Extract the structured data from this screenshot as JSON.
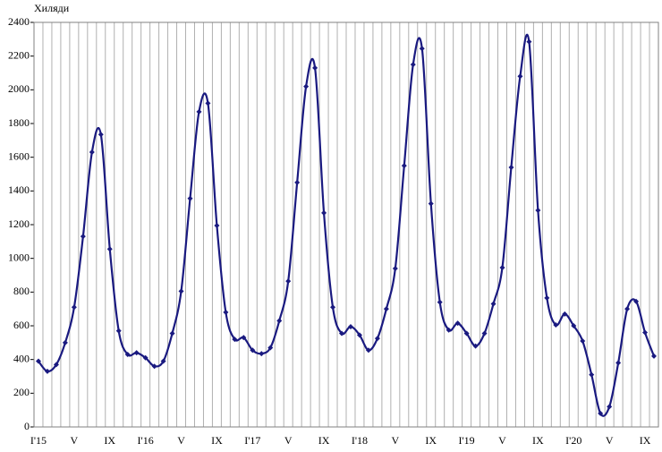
{
  "chart_data": {
    "type": "line",
    "y_label": "Хиляди",
    "categories": [
      "I'15",
      null,
      null,
      null,
      "V",
      null,
      null,
      null,
      "IX",
      null,
      null,
      null,
      "I'16",
      null,
      null,
      null,
      "V",
      null,
      null,
      null,
      "IX",
      null,
      null,
      null,
      "I'17",
      null,
      null,
      null,
      "V",
      null,
      null,
      null,
      "IX",
      null,
      null,
      null,
      "I'18",
      null,
      null,
      null,
      "V",
      null,
      null,
      null,
      "IX",
      null,
      null,
      null,
      "I'19",
      null,
      null,
      null,
      "V",
      null,
      null,
      null,
      "IX",
      null,
      null,
      null,
      "I'20",
      null,
      null,
      null,
      "V",
      null,
      null,
      null,
      "IX",
      null
    ],
    "values": [
      390,
      330,
      370,
      500,
      710,
      1130,
      1630,
      1735,
      1055,
      570,
      430,
      440,
      410,
      360,
      390,
      555,
      805,
      1355,
      1870,
      1920,
      1195,
      680,
      520,
      530,
      455,
      435,
      470,
      630,
      865,
      1450,
      2020,
      2130,
      1270,
      710,
      555,
      595,
      545,
      455,
      525,
      700,
      940,
      1550,
      2150,
      2245,
      1325,
      740,
      575,
      615,
      555,
      480,
      555,
      730,
      945,
      1540,
      2080,
      2285,
      1285,
      765,
      605,
      670,
      600,
      510,
      310,
      80,
      120,
      380,
      700,
      745,
      560,
      420
    ],
    "color": "#1a1a80",
    "ylim": [
      0,
      2400
    ],
    "yticks": [
      0,
      200,
      400,
      600,
      800,
      1000,
      1200,
      1400,
      1600,
      1800,
      2000,
      2200,
      2400
    ],
    "grid": true
  }
}
